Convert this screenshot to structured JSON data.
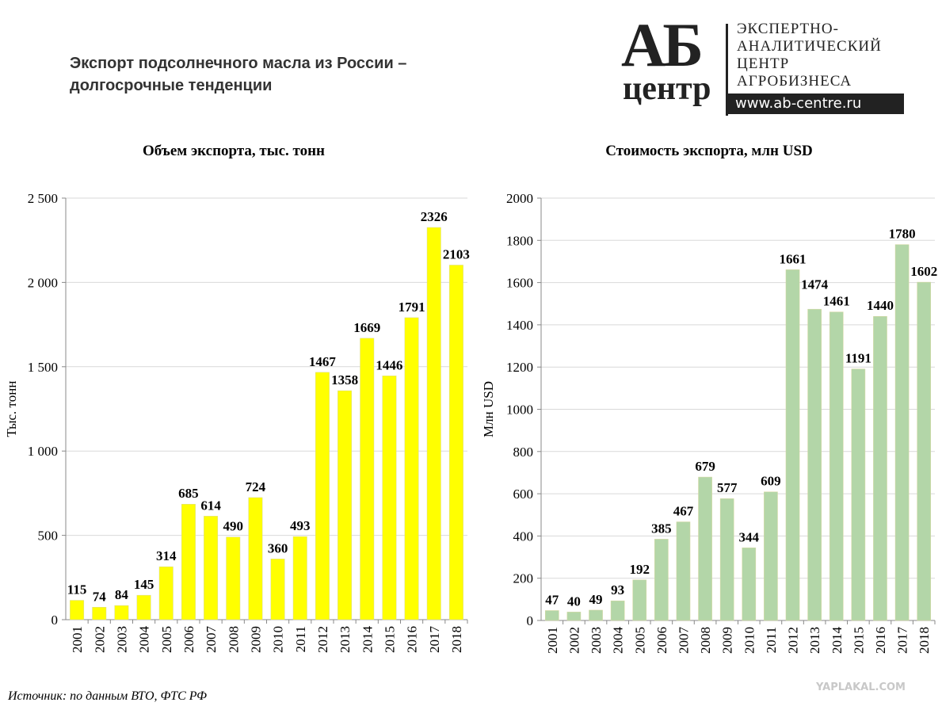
{
  "header": {
    "title_line1": "Экспорт подсолнечного масла из России –",
    "title_line2": "долгосрочные тенденции"
  },
  "logo": {
    "mark": "АБ",
    "mark_sub": "центр",
    "lines": [
      "ЭКСПЕРТНО-",
      "АНАЛИТИЧЕСКИЙ",
      "ЦЕНТР",
      "АГРОБИЗНЕСА"
    ],
    "url": "www.ab-centre.ru"
  },
  "source": "Источник: по данным ВТО, ФТС РФ",
  "watermark": "YAPLAKAL.COM",
  "chart_data": [
    {
      "type": "bar",
      "title": "Объем экспорта, тыс. тонн",
      "ylabel": "Тыс. тонн",
      "xlabel": "",
      "categories": [
        "2001",
        "2002",
        "2003",
        "2004",
        "2005",
        "2006",
        "2007",
        "2008",
        "2009",
        "2010",
        "2011",
        "2012",
        "2013",
        "2014",
        "2015",
        "2016",
        "2017",
        "2018"
      ],
      "values": [
        115,
        74,
        84,
        145,
        314,
        685,
        614,
        490,
        724,
        360,
        493,
        1467,
        1358,
        1669,
        1446,
        1791,
        2326,
        2103
      ],
      "ylim": [
        0,
        2500
      ],
      "yticks": [
        0,
        500,
        1000,
        1500,
        2000,
        2500
      ],
      "ytick_labels": [
        "0",
        "500",
        "1 000",
        "1 500",
        "2 000",
        "2 500"
      ],
      "grid": true,
      "color": "#ffff00"
    },
    {
      "type": "bar",
      "title": "Стоимость экспорта, млн USD",
      "ylabel": "Млн USD",
      "xlabel": "",
      "categories": [
        "2001",
        "2002",
        "2003",
        "2004",
        "2005",
        "2006",
        "2007",
        "2008",
        "2009",
        "2010",
        "2011",
        "2012",
        "2013",
        "2014",
        "2015",
        "2016",
        "2017",
        "2018"
      ],
      "values": [
        47,
        40,
        49,
        93,
        192,
        385,
        467,
        679,
        577,
        344,
        609,
        1661,
        1474,
        1461,
        1191,
        1440,
        1780,
        1602
      ],
      "ylim": [
        0,
        2000
      ],
      "yticks": [
        0,
        200,
        400,
        600,
        800,
        1000,
        1200,
        1400,
        1600,
        1800,
        2000
      ],
      "ytick_labels": [
        "0",
        "200",
        "400",
        "600",
        "800",
        "1000",
        "1200",
        "1400",
        "1600",
        "1800",
        "2000"
      ],
      "grid": true,
      "color": "#b3d6a8"
    }
  ]
}
